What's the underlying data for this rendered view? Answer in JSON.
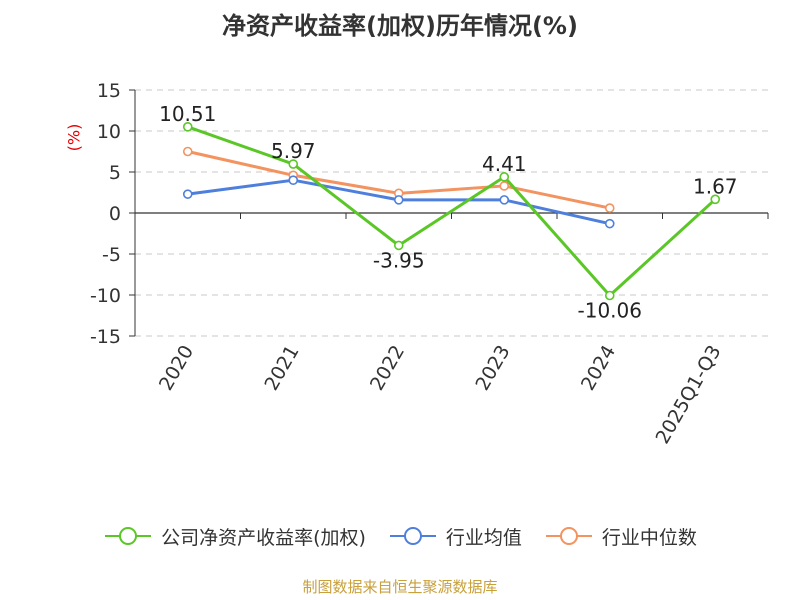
{
  "title": "净资产收益率(加权)历年情况(%)",
  "unit": "(%)",
  "footer": "制图数据来自恒生聚源数据库",
  "chart_data": {
    "type": "line",
    "categories": [
      "2020",
      "2021",
      "2022",
      "2023",
      "2024",
      "2025Q1-Q3"
    ],
    "ylim": [
      -15,
      15
    ],
    "yticks": [
      15,
      10,
      5,
      0,
      -5,
      -10,
      -15
    ],
    "grid": true,
    "legend_position": "bottom",
    "series": [
      {
        "name": "公司净资产收益率(加权)",
        "color": "#5ac727",
        "values": [
          10.51,
          5.97,
          -3.95,
          4.41,
          -10.06,
          1.67
        ],
        "labels": [
          "10.51",
          "5.97",
          "-3.95",
          "4.41",
          "-10.06",
          "1.67"
        ]
      },
      {
        "name": "行业均值",
        "color": "#4e7fdc",
        "values": [
          2.3,
          4.0,
          1.6,
          1.6,
          -1.3,
          null
        ]
      },
      {
        "name": "行业中位数",
        "color": "#f3935f",
        "values": [
          7.5,
          4.6,
          2.4,
          3.3,
          0.6,
          null
        ]
      }
    ]
  }
}
